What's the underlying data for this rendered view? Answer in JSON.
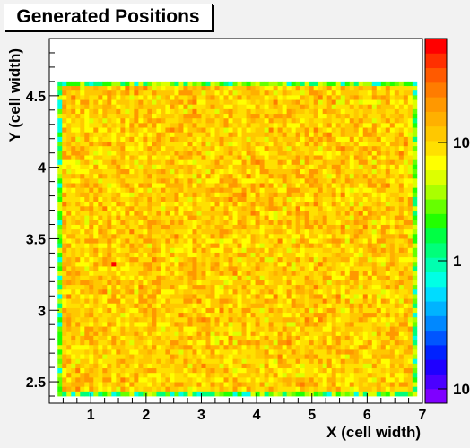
{
  "chart_data": {
    "type": "heatmap",
    "title": "Generated Positions",
    "xlabel": "X (cell width)",
    "ylabel": "Y (cell width)",
    "xlim": [
      0.25,
      7.0
    ],
    "ylim": [
      2.35,
      4.9
    ],
    "x_ticks": [
      1,
      2,
      3,
      4,
      5,
      6,
      7
    ],
    "y_ticks": [
      2.5,
      3,
      3.5,
      4,
      4.5
    ],
    "x_tick_labels": [
      "1",
      "2",
      "3",
      "4",
      "5",
      "6",
      "7"
    ],
    "y_tick_labels": [
      "2.5",
      "3",
      "3.5",
      "4",
      "4.5"
    ],
    "filled_region": {
      "x": [
        0.4,
        6.9
      ],
      "y": [
        2.4,
        4.6
      ]
    },
    "typical_bin_content": 10,
    "peak_bin": {
      "x": 1.45,
      "y": 3.33
    },
    "z_scale": "log",
    "palette_tick_labels": [
      "10",
      "1",
      "10"
    ],
    "palette_colors": [
      "#7f00ff",
      "#4b00ff",
      "#1f00ff",
      "#0022ff",
      "#0055ff",
      "#0088ff",
      "#00b3ff",
      "#00dcff",
      "#00ffe5",
      "#00ffb0",
      "#00ff7a",
      "#00ff44",
      "#22ff00",
      "#66ff00",
      "#aaff00",
      "#ddff00",
      "#ffff00",
      "#ffe000",
      "#ffc800",
      "#ffb000",
      "#ff9800",
      "#ff7c00",
      "#ff5a00",
      "#ff3000",
      "#ff0000"
    ]
  }
}
